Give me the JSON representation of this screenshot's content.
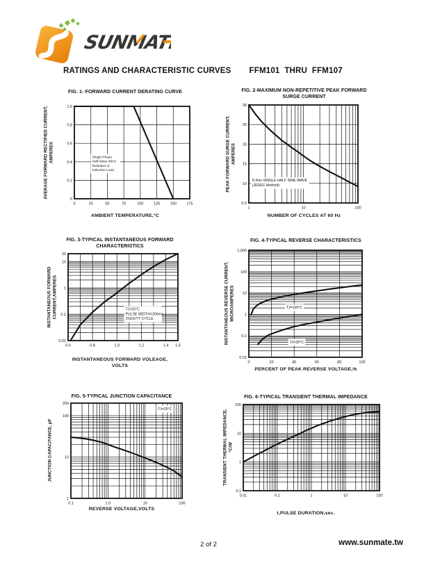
{
  "page": {
    "header": {
      "title": "RATINGS AND CHARACTERISTIC CURVES",
      "part_range": "FFM101  THRU  FFM107"
    },
    "footer": {
      "page_number": "2 of 2",
      "website": "www.sunmate.tw"
    }
  },
  "brand": {
    "name": "SUNMATE",
    "orange": "#f29111",
    "orange_light": "#f8b43a",
    "green": "#85bb4a",
    "dark": "#3a3633",
    "ink": "#111111"
  },
  "chart_data": [
    {
      "id": "fig1",
      "type": "line",
      "title": "FIG. 1- FORWARD CURRENT DERATING CURVE",
      "title_lines": [
        "FIG. 1- FORWARD CURRENT DERATING CURVE"
      ],
      "ylabel_lines": [
        "AVERAGE FORWARD RECTIFIED CURRENT,",
        "AMPERES"
      ],
      "xlabel_lines": [
        "AMBIENT TEMPERATURE,°C"
      ],
      "x_axis": {
        "scale": "linear",
        "min": 0,
        "max": 175,
        "ticks": [
          [
            0,
            "0"
          ],
          [
            25,
            "25"
          ],
          [
            50,
            "50"
          ],
          [
            75,
            "75"
          ],
          [
            100,
            "100"
          ],
          [
            125,
            "125"
          ],
          [
            150,
            "150"
          ],
          [
            175,
            "175"
          ]
        ],
        "grid": [
          25,
          50,
          75,
          100,
          125,
          150
        ]
      },
      "y_axis": {
        "scale": "linear",
        "min": 0,
        "max": 1.0,
        "ticks": [
          [
            0,
            "0"
          ],
          [
            0.2,
            "0.2"
          ],
          [
            0.4,
            "0.4"
          ],
          [
            0.6,
            "0.6"
          ],
          [
            0.8,
            "0.8"
          ],
          [
            1,
            "1.0"
          ]
        ],
        "grid": [
          0.2,
          0.4,
          0.6,
          0.8
        ]
      },
      "series": [
        {
          "name": "forward-current-derating",
          "points": [
            [
              0,
              1.0
            ],
            [
              90,
              1.0
            ],
            [
              150,
              0
            ]
          ]
        }
      ],
      "annotations": [
        {
          "lines": [
            "Single Phase",
            "Half Wave 60Hz",
            "Resistive or",
            "Inductive Load"
          ],
          "x": 27,
          "y": 0.47,
          "font": 4.8
        }
      ]
    },
    {
      "id": "fig2",
      "type": "line",
      "title": "FIG. 2-MAXIMUM NON-REPETITIVE PEAK FORWARD SURGE CURRENT",
      "title_lines": [
        "FIG. 2-MAXIMUM NON-REPETITIVE PEAK FORWARD",
        "SURGE CURRENT"
      ],
      "ylabel_lines": [
        "PEAK  FORWARD SURGE CURRENT,",
        "AMPERES"
      ],
      "xlabel_lines": [
        "NUMBER OF CYCLES AT 60 Hz"
      ],
      "x_axis": {
        "scale": "log",
        "min": 1,
        "max": 100,
        "ticks": [
          [
            1,
            "1"
          ],
          [
            10,
            "10"
          ],
          [
            100,
            "100"
          ]
        ]
      },
      "y_axis": {
        "scale": "linear",
        "min": 5,
        "max": 30,
        "ticks": [
          [
            5,
            "5.0"
          ],
          [
            10,
            "10"
          ],
          [
            15,
            "15"
          ],
          [
            20,
            "20"
          ],
          [
            25,
            "25"
          ],
          [
            30,
            "30"
          ]
        ],
        "grid": [
          10,
          15,
          20,
          25
        ]
      },
      "series": [
        {
          "name": "peak-surge-current",
          "points": [
            [
              1,
              30
            ],
            [
              1.3,
              27.8
            ],
            [
              1.7,
              25.8
            ],
            [
              2,
              24.8
            ],
            [
              2.5,
              23.5
            ],
            [
              3,
              22.5
            ],
            [
              4,
              21
            ],
            [
              5,
              20
            ],
            [
              6,
              19.2
            ],
            [
              8,
              18
            ],
            [
              10,
              17
            ],
            [
              13,
              15.9
            ],
            [
              17,
              14.9
            ],
            [
              22,
              14
            ],
            [
              30,
              13
            ],
            [
              40,
              12.1
            ],
            [
              55,
              11.1
            ],
            [
              70,
              10.3
            ],
            [
              85,
              9.7
            ],
            [
              100,
              9.2
            ]
          ]
        }
      ],
      "annotations": [
        {
          "lines": [
            "8.3ms SINGLE HALF SINE-WAVE",
            "(JEDEC Method)"
          ],
          "x": 1.15,
          "y": 11.2,
          "font": 5.2
        }
      ]
    },
    {
      "id": "fig3",
      "type": "line",
      "title": "FIG. 3-TYPICAL INSTANTANEOUS FORWARD CHARACTERISTICS",
      "title_lines": [
        "FIG. 3-TYPICAL INSTANTANEOUS FORWARD",
        "CHARACTERISTICS"
      ],
      "ylabel_lines": [
        "INSTANTANEOUS FORWARD",
        "CURRENT,AMPERES"
      ],
      "xlabel_lines": [
        "INSTANTANEOUS FORWARD VOLEAGE,",
        "VOLTS"
      ],
      "x_axis": {
        "scale": "linear",
        "min": 0.6,
        "max": 1.5,
        "ticks": [
          [
            0.6,
            "0.6"
          ],
          [
            0.8,
            "0.8"
          ],
          [
            1.0,
            "1.0"
          ],
          [
            1.2,
            "1.2"
          ],
          [
            1.4,
            "1.4"
          ],
          [
            1.5,
            "1.5"
          ]
        ],
        "grid": [
          0.7,
          0.8,
          0.9,
          1.0,
          1.1,
          1.2,
          1.3,
          1.4
        ]
      },
      "y_axis": {
        "scale": "log",
        "min": 0.01,
        "max": 20,
        "ticks": [
          [
            0.01,
            "0.01"
          ],
          [
            0.1,
            "0.1"
          ],
          [
            1,
            "1"
          ],
          [
            10,
            "10"
          ],
          [
            20,
            "20"
          ]
        ]
      },
      "series": [
        {
          "name": "instantaneous-forward-current",
          "points": [
            [
              0.62,
              0.01
            ],
            [
              0.7,
              0.04
            ],
            [
              0.8,
              0.12
            ],
            [
              0.9,
              0.3
            ],
            [
              1.0,
              0.65
            ],
            [
              1.1,
              1.5
            ],
            [
              1.2,
              3.2
            ],
            [
              1.3,
              6.5
            ],
            [
              1.4,
              12
            ],
            [
              1.5,
              20
            ]
          ]
        }
      ],
      "annotations": [
        {
          "lines": [
            "TJ=25°C",
            "PULSE WIDTH=300ms",
            "1%DUTY CYCLE"
          ],
          "x": 1.07,
          "y": 0.18,
          "font": 5.2
        }
      ]
    },
    {
      "id": "fig4",
      "type": "line",
      "title": "FIG. 4-TYPICAL REVERSE CHARACTERISTICS",
      "title_lines": [
        "FIG. 4-TYPICAL REVERSE CHARACTERISTICS"
      ],
      "ylabel_lines": [
        "INSTANTANEOUS REVERSE CURRENT,",
        "MICROAMPERES"
      ],
      "xlabel_lines": [
        "PERCENT OF PEAK REVERSE VOLTAGE,%"
      ],
      "x_axis": {
        "scale": "linear",
        "min": 0,
        "max": 100,
        "ticks": [
          [
            0,
            "0"
          ],
          [
            20,
            "20"
          ],
          [
            40,
            "40"
          ],
          [
            60,
            "60"
          ],
          [
            80,
            "80"
          ],
          [
            100,
            "100"
          ]
        ],
        "grid": [
          20,
          40,
          60,
          80
        ]
      },
      "y_axis": {
        "scale": "log",
        "min": 0.01,
        "max": 1000,
        "ticks": [
          [
            0.01,
            "0.01"
          ],
          [
            0.1,
            "0.1"
          ],
          [
            1,
            "1"
          ],
          [
            10,
            "10"
          ],
          [
            100,
            "100"
          ],
          [
            1000,
            "1,000"
          ]
        ]
      },
      "series": [
        {
          "name": "reverse-current-tj-100c",
          "points": [
            [
              2,
              1.0
            ],
            [
              4,
              1.8
            ],
            [
              7,
              2.6
            ],
            [
              10,
              3.3
            ],
            [
              15,
              4.3
            ],
            [
              20,
              5.2
            ],
            [
              30,
              6.9
            ],
            [
              40,
              8.6
            ],
            [
              50,
              10.5
            ],
            [
              60,
              12.5
            ],
            [
              70,
              15
            ],
            [
              80,
              17.5
            ],
            [
              90,
              20.5
            ],
            [
              100,
              24
            ]
          ]
        },
        {
          "name": "reverse-current-tj-25c",
          "points": [
            [
              8,
              0.04
            ],
            [
              12,
              0.07
            ],
            [
              16,
              0.1
            ],
            [
              20,
              0.125
            ],
            [
              30,
              0.19
            ],
            [
              40,
              0.27
            ],
            [
              50,
              0.35
            ],
            [
              60,
              0.44
            ],
            [
              70,
              0.55
            ],
            [
              80,
              0.68
            ],
            [
              90,
              0.83
            ],
            [
              100,
              1.0
            ]
          ]
        }
      ],
      "annotations": [
        {
          "lines": [
            "TJ=100°C"
          ],
          "x": 33,
          "y": 2.6,
          "font": 5.2
        },
        {
          "lines": [
            "TJ=25°C"
          ],
          "x": 36,
          "y": 0.062,
          "font": 5.2
        }
      ]
    },
    {
      "id": "fig5",
      "type": "line",
      "title": "FIG. 5-TYPICAL JUNCTION CAPACITANCE",
      "title_lines": [
        "FIG. 5-TYPICAL JUNCTION CAPACITANCE"
      ],
      "ylabel_lines": [
        "JUNCTION CAPACITANCE, pF"
      ],
      "xlabel_lines": [
        "REVERSE VOLTAGE,VOLTS"
      ],
      "x_axis": {
        "scale": "log",
        "min": 0.1,
        "max": 100,
        "ticks": [
          [
            0.1,
            "0.1"
          ],
          [
            1,
            "1.0"
          ],
          [
            10,
            "10"
          ],
          [
            100,
            "100"
          ]
        ]
      },
      "y_axis": {
        "scale": "log",
        "min": 1,
        "max": 200,
        "ticks": [
          [
            1,
            "1"
          ],
          [
            10,
            "10"
          ],
          [
            100,
            "100"
          ],
          [
            200,
            "200"
          ]
        ]
      },
      "series": [
        {
          "name": "junction-capacitance",
          "points": [
            [
              0.1,
              30
            ],
            [
              0.15,
              29
            ],
            [
              0.25,
              27.5
            ],
            [
              0.4,
              25.5
            ],
            [
              0.7,
              22.5
            ],
            [
              1,
              20
            ],
            [
              1.5,
              17.5
            ],
            [
              2.5,
              15
            ],
            [
              4,
              13
            ],
            [
              6,
              11.3
            ],
            [
              10,
              9.5
            ],
            [
              15,
              8.2
            ],
            [
              25,
              6.8
            ],
            [
              40,
              5.6
            ],
            [
              60,
              4.6
            ],
            [
              100,
              3.3
            ]
          ]
        }
      ],
      "annotations": [
        {
          "lines": [
            "TJ=25°C"
          ],
          "x": 22,
          "y": 160,
          "font": 5.2
        }
      ]
    },
    {
      "id": "fig6",
      "type": "line",
      "title": "FIG. 6-TYPICAL TRANSIENT THERMAL IMPEDANCE",
      "title_lines": [
        "FIG. 6-TYPICAL TRANSIENT THERMAL IMPEDANCE"
      ],
      "ylabel_lines": [
        "TRANSIENT THERMAL IMPEDANCE,",
        "°C/W"
      ],
      "xlabel_lines": [
        "t,PULSE DURATION,sec."
      ],
      "x_axis": {
        "scale": "log",
        "min": 0.01,
        "max": 100,
        "ticks": [
          [
            0.01,
            "0.01"
          ],
          [
            0.1,
            "0.1"
          ],
          [
            1,
            "1"
          ],
          [
            10,
            "10"
          ],
          [
            100,
            "100"
          ]
        ]
      },
      "y_axis": {
        "scale": "log",
        "min": 0.1,
        "max": 100,
        "ticks": [
          [
            0.1,
            "0.1"
          ],
          [
            1,
            "1"
          ],
          [
            10,
            "10"
          ],
          [
            100,
            "100"
          ]
        ]
      },
      "series": [
        {
          "name": "transient-thermal-impedance",
          "points": [
            [
              0.01,
              1.0
            ],
            [
              0.015,
              1.3
            ],
            [
              0.025,
              1.8
            ],
            [
              0.04,
              2.4
            ],
            [
              0.07,
              3.4
            ],
            [
              0.1,
              4.2
            ],
            [
              0.15,
              5.3
            ],
            [
              0.25,
              7
            ],
            [
              0.4,
              9
            ],
            [
              0.7,
              12.5
            ],
            [
              1,
              15
            ],
            [
              1.5,
              18.5
            ],
            [
              2.5,
              23
            ],
            [
              4,
              28
            ],
            [
              7,
              34
            ],
            [
              10,
              38
            ],
            [
              15,
              43
            ],
            [
              25,
              48
            ],
            [
              40,
              52
            ],
            [
              60,
              54.5
            ],
            [
              100,
              56
            ]
          ]
        }
      ],
      "annotations": []
    }
  ]
}
